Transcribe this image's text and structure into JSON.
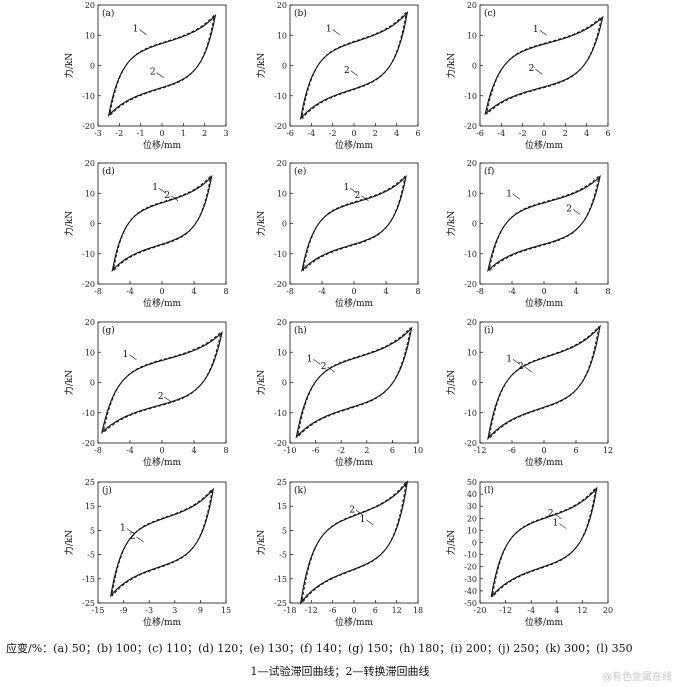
{
  "chart_data": [
    {
      "type": "line",
      "panel_label": "(a)",
      "xlabel": "位移/mm",
      "ylabel": "力/kN",
      "xlim": [
        -3,
        3
      ],
      "ylim": [
        -20,
        20
      ],
      "xticks": [
        -3,
        -2,
        -1,
        0,
        1,
        2,
        3
      ],
      "yticks": [
        -20,
        -10,
        0,
        10,
        20
      ],
      "amp_x": 2.5,
      "amp_y": 16.5,
      "k": 0.5,
      "labels": [
        {
          "text": "1",
          "x": -1.1,
          "y": 11.2
        },
        {
          "text": "2",
          "x": -0.3,
          "y": -3.0
        }
      ],
      "series": [
        {
          "name": "1",
          "values": "closed hysteresis loop, x -2.5..2.5, F -16.5..16.5"
        },
        {
          "name": "2",
          "values": "dashed, close to 1"
        }
      ]
    },
    {
      "type": "line",
      "panel_label": "(b)",
      "xlabel": "位移/mm",
      "ylabel": "力/kN",
      "xlim": [
        -6,
        6
      ],
      "ylim": [
        -20,
        20
      ],
      "xticks": [
        -6,
        -4,
        -2,
        0,
        2,
        4,
        6
      ],
      "yticks": [
        -20,
        -10,
        0,
        10,
        20
      ],
      "amp_x": 5.0,
      "amp_y": 17.5,
      "k": 0.5,
      "labels": [
        {
          "text": "1",
          "x": -2.1,
          "y": 11.2
        },
        {
          "text": "2",
          "x": -0.4,
          "y": -2.4
        }
      ],
      "series": [
        {
          "name": "1",
          "values": "x -5..5, F -17.5..17.5"
        },
        {
          "name": "2",
          "values": "dashed"
        }
      ]
    },
    {
      "type": "line",
      "panel_label": "(c)",
      "xlabel": "位移/mm",
      "ylabel": "力/kN",
      "xlim": [
        -6,
        6
      ],
      "ylim": [
        -20,
        20
      ],
      "xticks": [
        -6,
        -4,
        -2,
        0,
        2,
        4,
        6
      ],
      "yticks": [
        -20,
        -10,
        0,
        10,
        20
      ],
      "amp_x": 5.5,
      "amp_y": 16.0,
      "k": 0.5,
      "labels": [
        {
          "text": "1",
          "x": -0.5,
          "y": 11.0
        },
        {
          "text": "2",
          "x": -0.9,
          "y": -1.9
        }
      ],
      "series": [
        {
          "name": "1",
          "values": "x -5.5..5.5, F -16..16"
        },
        {
          "name": "2",
          "values": "dashed"
        }
      ]
    },
    {
      "type": "line",
      "panel_label": "(d)",
      "xlabel": "位移/mm",
      "ylabel": "力/kN",
      "xlim": [
        -8,
        8
      ],
      "ylim": [
        -20,
        20
      ],
      "xticks": [
        -8,
        -4,
        0,
        4,
        8
      ],
      "yticks": [
        -20,
        -10,
        0,
        10,
        20
      ],
      "amp_x": 6.2,
      "amp_y": 15.5,
      "k": 0.55,
      "labels": [
        {
          "text": "1",
          "x": -0.5,
          "y": 11.0
        },
        {
          "text": "2",
          "x": 1.0,
          "y": 8.5
        }
      ],
      "series": [
        {
          "name": "1",
          "values": "x -6.2..6.2, F -15.5..15.5"
        },
        {
          "name": "2",
          "values": "dashed"
        }
      ]
    },
    {
      "type": "line",
      "panel_label": "(e)",
      "xlabel": "位移/mm",
      "ylabel": "力/kN",
      "xlim": [
        -8,
        8
      ],
      "ylim": [
        -20,
        20
      ],
      "xticks": [
        -8,
        -4,
        0,
        4,
        8
      ],
      "yticks": [
        -20,
        -10,
        0,
        10,
        20
      ],
      "amp_x": 6.5,
      "amp_y": 15.5,
      "k": 0.55,
      "labels": [
        {
          "text": "1",
          "x": -0.6,
          "y": 11.0
        },
        {
          "text": "2",
          "x": 0.8,
          "y": 8.5
        }
      ],
      "series": [
        {
          "name": "1",
          "values": "x -6.5..6.5, F -15.5..15.5"
        },
        {
          "name": "2",
          "values": "dashed"
        }
      ]
    },
    {
      "type": "line",
      "panel_label": "(f)",
      "xlabel": "位移/mm",
      "ylabel": "力/kN",
      "xlim": [
        -8,
        8
      ],
      "ylim": [
        -20,
        20
      ],
      "xticks": [
        -8,
        -4,
        0,
        4,
        8
      ],
      "yticks": [
        -20,
        -10,
        0,
        10,
        20
      ],
      "amp_x": 7.0,
      "amp_y": 15.5,
      "k": 0.5,
      "labels": [
        {
          "text": "1",
          "x": -4.0,
          "y": 9.0
        },
        {
          "text": "2",
          "x": 3.5,
          "y": 4.0
        }
      ],
      "series": [
        {
          "name": "1",
          "values": "x -7..7, F -15.5..15.5"
        },
        {
          "name": "2",
          "values": "dashed"
        }
      ]
    },
    {
      "type": "line",
      "panel_label": "(g)",
      "xlabel": "位移/mm",
      "ylabel": "力/kN",
      "xlim": [
        -8,
        8
      ],
      "ylim": [
        -20,
        20
      ],
      "xticks": [
        -8,
        -4,
        0,
        4,
        8
      ],
      "yticks": [
        -20,
        -10,
        0,
        10,
        20
      ],
      "amp_x": 7.5,
      "amp_y": 16.5,
      "k": 0.5,
      "labels": [
        {
          "text": "1",
          "x": -4.2,
          "y": 8.5
        },
        {
          "text": "2",
          "x": 0.2,
          "y": -5.5
        }
      ],
      "series": [
        {
          "name": "1",
          "values": "x -7.5..7.5, F -16.5..16.5"
        },
        {
          "name": "2",
          "values": "dashed"
        }
      ]
    },
    {
      "type": "line",
      "panel_label": "(h)",
      "xlabel": "位移/mm",
      "ylabel": "力/kN",
      "xlim": [
        -10,
        10
      ],
      "ylim": [
        -20,
        20
      ],
      "xticks": [
        -10,
        -6,
        -2,
        2,
        6,
        10
      ],
      "yticks": [
        -20,
        -10,
        0,
        10,
        20
      ],
      "amp_x": 9.0,
      "amp_y": 18.0,
      "k": 0.45,
      "labels": [
        {
          "text": "1",
          "x": -6.5,
          "y": 7.0
        },
        {
          "text": "2",
          "x": -4.3,
          "y": 4.5
        }
      ],
      "series": [
        {
          "name": "1",
          "values": "x -9..9, F -18..18"
        },
        {
          "name": "2",
          "values": "dashed"
        }
      ]
    },
    {
      "type": "line",
      "panel_label": "(i)",
      "xlabel": "位移/mm",
      "ylabel": "力/kN",
      "xlim": [
        -12,
        12
      ],
      "ylim": [
        -20,
        20
      ],
      "xticks": [
        -12,
        -6,
        0,
        6,
        12
      ],
      "yticks": [
        -20,
        -10,
        0,
        10,
        20
      ],
      "amp_x": 10.5,
      "amp_y": 18.5,
      "k": 0.45,
      "labels": [
        {
          "text": "1",
          "x": -6.0,
          "y": 7.0
        },
        {
          "text": "2",
          "x": -3.8,
          "y": 4.5
        }
      ],
      "series": [
        {
          "name": "1",
          "values": "x -10.5..10.5, F -18.5..18.5"
        },
        {
          "name": "2",
          "values": "dashed"
        }
      ]
    },
    {
      "type": "line",
      "panel_label": "(j)",
      "xlabel": "位移/mm",
      "ylabel": "力/kN",
      "xlim": [
        -15,
        15
      ],
      "ylim": [
        -25,
        25
      ],
      "xticks": [
        -15,
        -9,
        -3,
        3,
        9,
        15
      ],
      "yticks": [
        -25,
        -15,
        -5,
        5,
        15,
        25
      ],
      "amp_x": 12.0,
      "amp_y": 22.0,
      "k": 0.4,
      "labels": [
        {
          "text": "1",
          "x": -8.5,
          "y": 5.0
        },
        {
          "text": "2",
          "x": -6.2,
          "y": 1.5
        }
      ],
      "series": [
        {
          "name": "1",
          "values": "x -12..12, F -22..22"
        },
        {
          "name": "2",
          "values": "dashed"
        }
      ]
    },
    {
      "type": "line",
      "panel_label": "(k)",
      "xlabel": "位移/mm",
      "ylabel": "力/kN",
      "xlim": [
        -18,
        18
      ],
      "ylim": [
        -25,
        25
      ],
      "xticks": [
        -18,
        -12,
        -6,
        0,
        6,
        12,
        18
      ],
      "yticks": [
        -25,
        -15,
        -5,
        5,
        15,
        25
      ],
      "amp_x": 15.0,
      "amp_y": 25.0,
      "k": 0.4,
      "labels": [
        {
          "text": "2",
          "x": 0.3,
          "y": 12.5
        },
        {
          "text": "1",
          "x": 3.2,
          "y": 8.5
        }
      ],
      "series": [
        {
          "name": "1",
          "values": "x -15..15, F -25..25"
        },
        {
          "name": "2",
          "values": "dashed"
        }
      ]
    },
    {
      "type": "line",
      "panel_label": "(l)",
      "xlabel": "位移/mm",
      "ylabel": "力/kN",
      "xlim": [
        -20,
        20
      ],
      "ylim": [
        -50,
        50
      ],
      "xticks": [
        -20,
        -12,
        -4,
        4,
        12,
        20
      ],
      "yticks": [
        -50,
        -40,
        -30,
        -20,
        -10,
        0,
        10,
        20,
        30,
        40,
        50
      ],
      "amp_x": 16.5,
      "amp_y": 45.0,
      "k": 0.35,
      "labels": [
        {
          "text": "2",
          "x": 3.0,
          "y": 22.0
        },
        {
          "text": "1",
          "x": 4.5,
          "y": 14.0
        }
      ],
      "series": [
        {
          "name": "1",
          "values": "x -16.5..16.5, F -45..45"
        },
        {
          "name": "2",
          "values": "dashed"
        }
      ]
    }
  ],
  "caption_line1": "应变/%：(a) 50；(b) 100；(c) 110；(d) 120；(e) 130；(f) 140；(g) 150；(h) 180；(i) 200；(j) 250；(k) 300；(l) 350",
  "caption_line2": "1—试验滞回曲线；2—转换滞回曲线",
  "watermark": "@有色金属在线"
}
